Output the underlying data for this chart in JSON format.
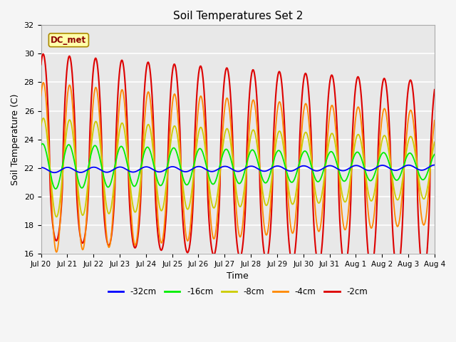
{
  "title": "Soil Temperatures Set 2",
  "xlabel": "Time",
  "ylabel": "Soil Temperature (C)",
  "ylim": [
    16,
    32
  ],
  "yticks": [
    16,
    18,
    20,
    22,
    24,
    26,
    28,
    30,
    32
  ],
  "x_tick_labels": [
    "Jul 20",
    "Jul 21",
    "Jul 22",
    "Jul 23",
    "Jul 24",
    "Jul 25",
    "Jul 26",
    "Jul 27",
    "Jul 28",
    "Jul 29",
    "Jul 30",
    "Jul 31",
    "Aug 1",
    "Aug 2",
    "Aug 3",
    "Aug 4"
  ],
  "legend_labels": [
    "-32cm",
    "-16cm",
    "-8cm",
    "-4cm",
    "-2cm"
  ],
  "legend_colors": [
    "#0000ff",
    "#00ee00",
    "#cccc00",
    "#ff8800",
    "#dd0000"
  ],
  "annotation_text": "DC_met",
  "background_color": "#e8e8e8",
  "grid_color": "#ffffff",
  "n_days": 15
}
